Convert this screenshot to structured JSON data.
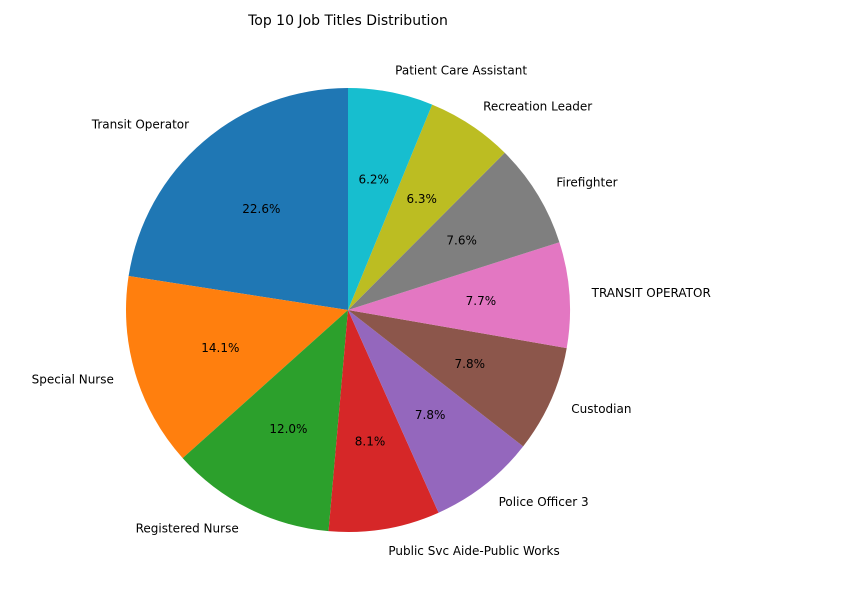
{
  "chart_data": {
    "type": "pie",
    "title": "Top 10 Job Titles Distribution",
    "labels": [
      "Transit Operator",
      "Special Nurse",
      "Registered Nurse",
      "Public Svc Aide-Public Works",
      "Police Officer 3",
      "Custodian",
      "TRANSIT OPERATOR",
      "Firefighter",
      "Recreation Leader",
      "Patient Care Assistant"
    ],
    "values": [
      22.6,
      14.1,
      12.0,
      8.1,
      7.8,
      7.8,
      7.7,
      7.6,
      6.3,
      6.2
    ],
    "percent_labels": [
      "22.6%",
      "14.1%",
      "12.0%",
      "8.1%",
      "7.8%",
      "7.8%",
      "7.7%",
      "7.6%",
      "6.3%",
      "6.2%"
    ],
    "colors": [
      "#1f77b4",
      "#ff7f0e",
      "#2ca02c",
      "#d62728",
      "#9467bd",
      "#8c564b",
      "#e377c2",
      "#7f7f7f",
      "#bcbd22",
      "#17becf"
    ],
    "start_angle_deg": 90,
    "direction": "counterclockwise"
  }
}
